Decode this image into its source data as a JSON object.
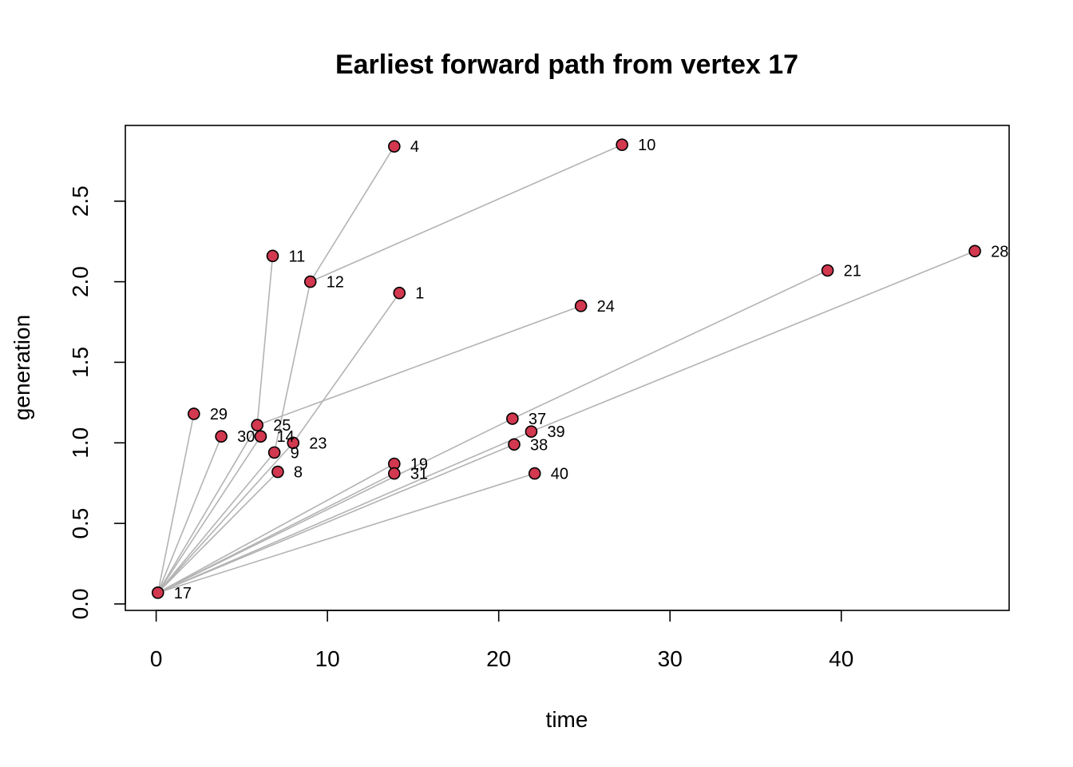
{
  "chart_data": {
    "type": "scatter",
    "title": "Earliest forward path from vertex 17",
    "xlabel": "time",
    "ylabel": "generation",
    "xlim": [
      -1.8,
      49.8
    ],
    "ylim": [
      -0.04,
      2.97
    ],
    "x_ticks": [
      0,
      10,
      20,
      30,
      40
    ],
    "y_ticks": [
      0.0,
      0.5,
      1.0,
      1.5,
      2.0,
      2.5
    ],
    "x_tick_labels": [
      "0",
      "10",
      "20",
      "30",
      "40"
    ],
    "y_tick_labels": [
      "0.0",
      "0.5",
      "1.0",
      "1.5",
      "2.0",
      "2.5"
    ],
    "grid": false,
    "legend": "none",
    "point_color": "#d2384f",
    "edge_color": "#b3b3b3",
    "vertices": [
      {
        "id": "17",
        "x": 0.1,
        "y": 0.07
      },
      {
        "id": "29",
        "x": 2.2,
        "y": 1.18
      },
      {
        "id": "30",
        "x": 3.8,
        "y": 1.04
      },
      {
        "id": "14",
        "x": 6.1,
        "y": 1.04
      },
      {
        "id": "25",
        "x": 5.9,
        "y": 1.11
      },
      {
        "id": "9",
        "x": 6.9,
        "y": 0.94
      },
      {
        "id": "23",
        "x": 8.0,
        "y": 1.0
      },
      {
        "id": "8",
        "x": 7.1,
        "y": 0.82
      },
      {
        "id": "19",
        "x": 13.9,
        "y": 0.87
      },
      {
        "id": "31",
        "x": 13.9,
        "y": 0.81
      },
      {
        "id": "37",
        "x": 20.8,
        "y": 1.15
      },
      {
        "id": "39",
        "x": 21.9,
        "y": 1.07
      },
      {
        "id": "38",
        "x": 20.9,
        "y": 0.99
      },
      {
        "id": "40",
        "x": 22.1,
        "y": 0.81
      },
      {
        "id": "11",
        "x": 6.8,
        "y": 2.16
      },
      {
        "id": "12",
        "x": 9.0,
        "y": 2.0
      },
      {
        "id": "1",
        "x": 14.2,
        "y": 1.93
      },
      {
        "id": "4",
        "x": 13.9,
        "y": 2.84
      },
      {
        "id": "10",
        "x": 27.2,
        "y": 2.85
      },
      {
        "id": "24",
        "x": 24.8,
        "y": 1.85
      },
      {
        "id": "21",
        "x": 39.2,
        "y": 2.07
      },
      {
        "id": "28",
        "x": 47.8,
        "y": 2.19
      }
    ],
    "edges": [
      [
        "17",
        "29"
      ],
      [
        "17",
        "30"
      ],
      [
        "17",
        "14"
      ],
      [
        "17",
        "25"
      ],
      [
        "17",
        "9"
      ],
      [
        "17",
        "23"
      ],
      [
        "17",
        "8"
      ],
      [
        "17",
        "19"
      ],
      [
        "17",
        "31"
      ],
      [
        "17",
        "37"
      ],
      [
        "17",
        "39"
      ],
      [
        "17",
        "38"
      ],
      [
        "17",
        "40"
      ],
      [
        "25",
        "11"
      ],
      [
        "9",
        "12"
      ],
      [
        "23",
        "1"
      ],
      [
        "25",
        "24"
      ],
      [
        "12",
        "4"
      ],
      [
        "12",
        "10"
      ],
      [
        "37",
        "21"
      ],
      [
        "39",
        "28"
      ]
    ]
  }
}
